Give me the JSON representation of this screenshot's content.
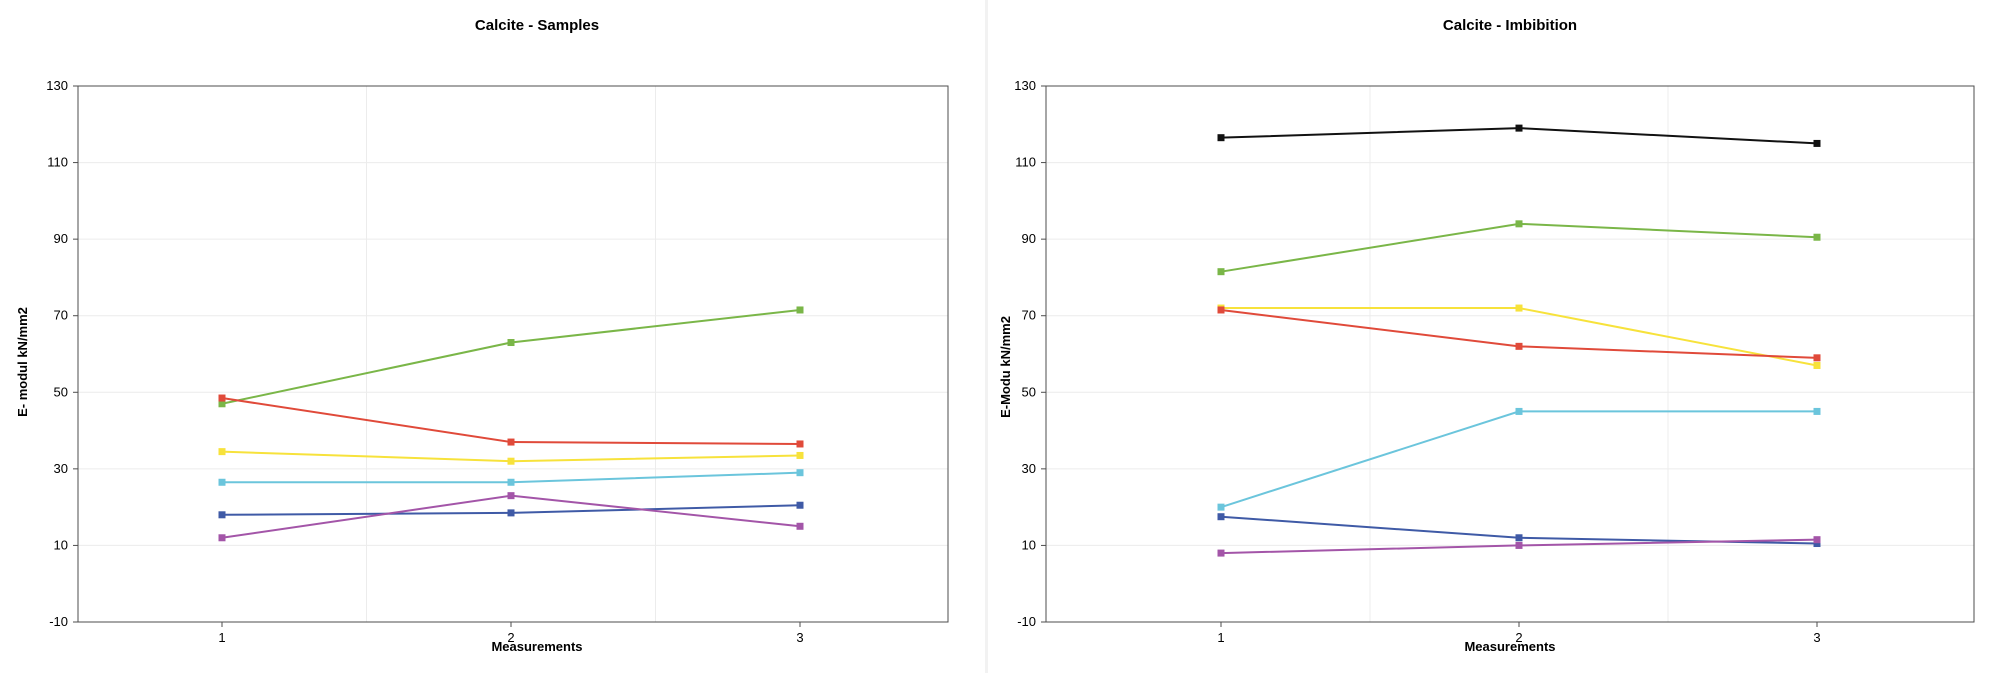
{
  "chart_data": [
    {
      "type": "line",
      "title": "Calcite - Samples",
      "xlabel": "Measurements",
      "ylabel": "E- modul kN/mm2",
      "categories": [
        "1",
        "2",
        "3"
      ],
      "ylim": [
        -10,
        130
      ],
      "yticks": [
        -10,
        10,
        30,
        50,
        70,
        90,
        110,
        130
      ],
      "grid": true,
      "legend": "none",
      "series": [
        {
          "color": "#7ab648",
          "values": [
            47.0,
            63.0,
            71.5
          ]
        },
        {
          "color": "#e04a3a",
          "values": [
            48.5,
            37.0,
            36.5
          ]
        },
        {
          "color": "#f7e23b",
          "values": [
            34.5,
            32.0,
            33.5
          ]
        },
        {
          "color": "#6bc5dc",
          "values": [
            26.5,
            26.5,
            29.0
          ]
        },
        {
          "color": "#3f5aa6",
          "values": [
            18.0,
            18.5,
            20.5
          ]
        },
        {
          "color": "#a355a8",
          "values": [
            12.0,
            23.0,
            15.0
          ]
        }
      ]
    },
    {
      "type": "line",
      "title": "Calcite - Imbibition",
      "xlabel": "Measurements",
      "ylabel": "E-Modu kN/mm2",
      "categories": [
        "1",
        "2",
        "3"
      ],
      "ylim": [
        -10,
        130
      ],
      "yticks": [
        -10,
        10,
        30,
        50,
        70,
        90,
        110,
        130
      ],
      "grid": true,
      "legend": "none",
      "series": [
        {
          "color": "#111111",
          "values": [
            116.5,
            119.0,
            115.0
          ]
        },
        {
          "color": "#7ab648",
          "values": [
            81.5,
            94.0,
            90.5
          ]
        },
        {
          "color": "#f7e23b",
          "values": [
            72.0,
            72.0,
            57.0
          ]
        },
        {
          "color": "#e04a3a",
          "values": [
            71.5,
            62.0,
            59.0
          ]
        },
        {
          "color": "#6bc5dc",
          "values": [
            20.0,
            45.0,
            45.0
          ]
        },
        {
          "color": "#3f5aa6",
          "values": [
            17.5,
            12.0,
            10.5
          ]
        },
        {
          "color": "#a355a8",
          "values": [
            8.0,
            10.0,
            11.5
          ]
        }
      ]
    }
  ]
}
